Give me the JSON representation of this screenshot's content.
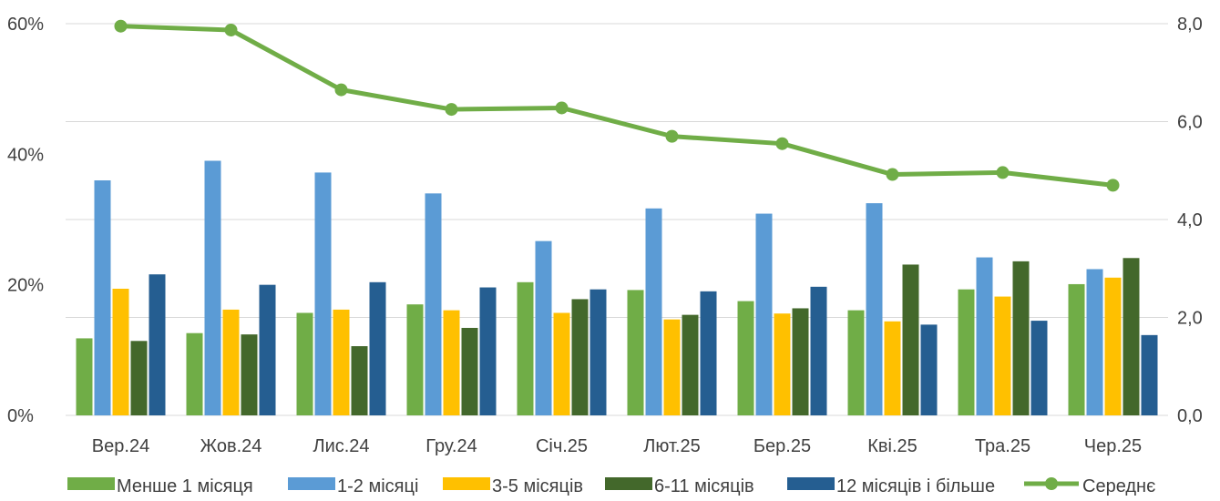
{
  "chart_data": {
    "type": "bar",
    "title": "",
    "xlabel": "",
    "ylabel": "",
    "y2label": "",
    "categories": [
      "Вер.24",
      "Жов.24",
      "Лис.24",
      "Гру.24",
      "Січ.25",
      "Лют.25",
      "Бер.25",
      "Кві.25",
      "Тра.25",
      "Чер.25"
    ],
    "ylim": [
      0,
      60
    ],
    "y2lim": [
      0,
      8
    ],
    "y_ticks": [
      0,
      20,
      40,
      60
    ],
    "y_tick_labels": [
      "0%",
      "20%",
      "40%",
      "60%"
    ],
    "y2_ticks": [
      0,
      2,
      4,
      6,
      8
    ],
    "y2_tick_labels": [
      "0,0",
      "2,0",
      "4,0",
      "6,0",
      "8,0"
    ],
    "grid": true,
    "legend_position": "bottom",
    "series": [
      {
        "name": "Менше 1 місяця",
        "type": "bar",
        "axis": "left",
        "color": "#70AD47",
        "values": [
          11.8,
          12.6,
          15.7,
          17.0,
          20.4,
          19.2,
          17.5,
          16.1,
          19.3,
          20.1
        ]
      },
      {
        "name": "1-2 місяці",
        "type": "bar",
        "axis": "left",
        "color": "#5B9BD5",
        "values": [
          36.0,
          39.0,
          37.2,
          34.0,
          26.7,
          31.7,
          30.9,
          32.5,
          24.2,
          22.4
        ]
      },
      {
        "name": "3-5 місяців",
        "type": "bar",
        "axis": "left",
        "color": "#FFC000",
        "values": [
          19.4,
          16.2,
          16.2,
          16.1,
          15.7,
          14.7,
          15.6,
          14.4,
          18.2,
          21.1
        ]
      },
      {
        "name": "6-11 місяців",
        "type": "bar",
        "axis": "left",
        "color": "#43682B",
        "values": [
          11.4,
          12.4,
          10.6,
          13.4,
          17.8,
          15.4,
          16.4,
          23.1,
          23.6,
          24.1
        ]
      },
      {
        "name": "12 місяців і більше",
        "type": "bar",
        "axis": "left",
        "color": "#255E91",
        "values": [
          21.6,
          20.0,
          20.4,
          19.6,
          19.3,
          19.0,
          19.7,
          13.9,
          14.5,
          12.3
        ]
      },
      {
        "name": "Середнє",
        "type": "line",
        "axis": "right",
        "color": "#70AD47",
        "values": [
          7.95,
          7.87,
          6.65,
          6.25,
          6.28,
          5.7,
          5.55,
          4.92,
          4.96,
          4.7
        ]
      }
    ]
  }
}
